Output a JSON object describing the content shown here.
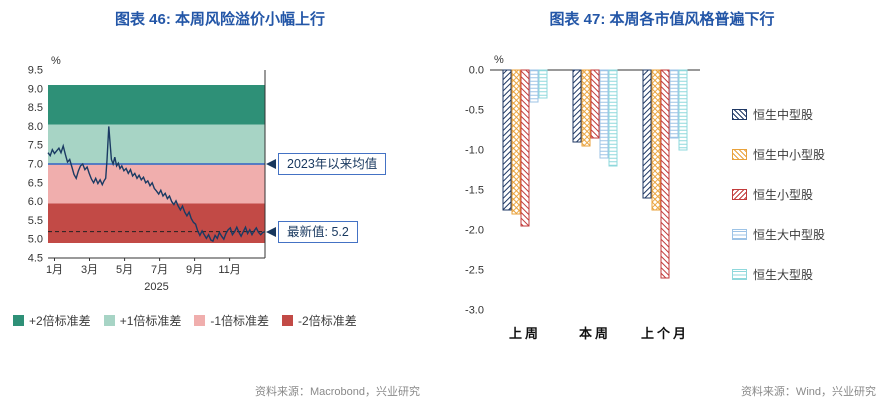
{
  "colors": {
    "title_blue": "#2356A7",
    "source_gray": "#8A8A8A",
    "axis_text": "#333333"
  },
  "chart_data": [
    {
      "type": "line",
      "title": "图表 46: 本周风险溢价小幅上行",
      "source": "资料来源：Macrobond，兴业研究",
      "ylabel": "%",
      "ylim": [
        4.5,
        9.5
      ],
      "ytick_step": 0.5,
      "x_ticks": [
        {
          "label": "1月",
          "m": 1
        },
        {
          "label": "3月",
          "m": 3
        },
        {
          "label": "5月",
          "m": 5
        },
        {
          "label": "7月",
          "m": 7
        },
        {
          "label": "9月",
          "m": 9
        },
        {
          "label": "11月",
          "m": 11
        }
      ],
      "year_label": "2025",
      "bands": [
        {
          "label": "+2倍标准差",
          "from": 8.05,
          "to": 9.1,
          "color": "#2E9077"
        },
        {
          "label": "+1倍标准差",
          "from": 7.0,
          "to": 8.05,
          "color": "#A7D4C5"
        },
        {
          "label": "-1倍标准差",
          "from": 5.95,
          "to": 7.0,
          "color": "#F0AEAD"
        },
        {
          "label": "-2倍标准差",
          "from": 4.9,
          "to": 5.95,
          "color": "#C24A46"
        }
      ],
      "mean_line": {
        "value": 7.0,
        "label": "2023年以来均值",
        "color": "#4472C4"
      },
      "latest": {
        "value": 5.2,
        "label": "最新值: 5.2"
      },
      "line_color": "#1A3A63",
      "series": [
        [
          0,
          7.3
        ],
        [
          0.01,
          7.22
        ],
        [
          0.02,
          7.38
        ],
        [
          0.03,
          7.28
        ],
        [
          0.04,
          7.35
        ],
        [
          0.05,
          7.42
        ],
        [
          0.06,
          7.3
        ],
        [
          0.07,
          7.48
        ],
        [
          0.08,
          7.25
        ],
        [
          0.09,
          7.05
        ],
        [
          0.1,
          7.12
        ],
        [
          0.11,
          6.92
        ],
        [
          0.12,
          6.72
        ],
        [
          0.13,
          6.62
        ],
        [
          0.14,
          6.82
        ],
        [
          0.15,
          6.95
        ],
        [
          0.16,
          7.0
        ],
        [
          0.17,
          6.85
        ],
        [
          0.18,
          6.92
        ],
        [
          0.19,
          6.75
        ],
        [
          0.2,
          6.6
        ],
        [
          0.21,
          6.5
        ],
        [
          0.22,
          6.62
        ],
        [
          0.23,
          6.48
        ],
        [
          0.24,
          6.58
        ],
        [
          0.25,
          6.45
        ],
        [
          0.258,
          6.55
        ],
        [
          0.266,
          6.62
        ],
        [
          0.272,
          7.1
        ],
        [
          0.28,
          8.0
        ],
        [
          0.286,
          7.55
        ],
        [
          0.292,
          7.12
        ],
        [
          0.3,
          7.0
        ],
        [
          0.308,
          7.18
        ],
        [
          0.316,
          6.95
        ],
        [
          0.324,
          7.02
        ],
        [
          0.332,
          6.88
        ],
        [
          0.34,
          6.95
        ],
        [
          0.35,
          6.82
        ],
        [
          0.36,
          6.88
        ],
        [
          0.37,
          6.75
        ],
        [
          0.38,
          6.85
        ],
        [
          0.39,
          6.68
        ],
        [
          0.4,
          6.75
        ],
        [
          0.41,
          6.62
        ],
        [
          0.42,
          6.7
        ],
        [
          0.43,
          6.58
        ],
        [
          0.44,
          6.65
        ],
        [
          0.45,
          6.5
        ],
        [
          0.46,
          6.55
        ],
        [
          0.47,
          6.42
        ],
        [
          0.48,
          6.5
        ],
        [
          0.49,
          6.35
        ],
        [
          0.5,
          6.28
        ],
        [
          0.51,
          6.2
        ],
        [
          0.52,
          6.3
        ],
        [
          0.53,
          6.15
        ],
        [
          0.54,
          6.22
        ],
        [
          0.55,
          6.08
        ],
        [
          0.56,
          6.15
        ],
        [
          0.57,
          6.0
        ],
        [
          0.58,
          5.92
        ],
        [
          0.59,
          6.02
        ],
        [
          0.6,
          5.88
        ],
        [
          0.61,
          5.78
        ],
        [
          0.62,
          5.88
        ],
        [
          0.63,
          5.72
        ],
        [
          0.64,
          5.62
        ],
        [
          0.65,
          5.72
        ],
        [
          0.66,
          5.55
        ],
        [
          0.67,
          5.45
        ],
        [
          0.68,
          5.4
        ],
        [
          0.69,
          5.22
        ],
        [
          0.7,
          5.1
        ],
        [
          0.71,
          5.22
        ],
        [
          0.72,
          5.12
        ],
        [
          0.73,
          5.02
        ],
        [
          0.74,
          5.12
        ],
        [
          0.75,
          4.98
        ],
        [
          0.76,
          4.95
        ],
        [
          0.77,
          5.1
        ],
        [
          0.78,
          5.02
        ],
        [
          0.79,
          5.18
        ],
        [
          0.8,
          5.08
        ],
        [
          0.81,
          5.0
        ],
        [
          0.82,
          5.15
        ],
        [
          0.83,
          5.25
        ],
        [
          0.84,
          5.3
        ],
        [
          0.85,
          5.12
        ],
        [
          0.86,
          5.2
        ],
        [
          0.87,
          5.32
        ],
        [
          0.88,
          5.18
        ],
        [
          0.89,
          5.08
        ],
        [
          0.9,
          5.2
        ],
        [
          0.91,
          5.32
        ],
        [
          0.92,
          5.15
        ],
        [
          0.93,
          5.25
        ],
        [
          0.94,
          5.12
        ],
        [
          0.95,
          5.22
        ],
        [
          0.96,
          5.3
        ],
        [
          0.97,
          5.18
        ],
        [
          0.98,
          5.12
        ],
        [
          0.99,
          5.18
        ],
        [
          1,
          5.2
        ]
      ]
    },
    {
      "type": "bar",
      "title": "图表 47: 本周各市值风格普遍下行",
      "source": "资料来源：Wind，兴业研究",
      "ylabel": "%",
      "ylim": [
        -3.0,
        0.0
      ],
      "ytick_labels": [
        "0.0",
        "-0.5",
        "-1.0",
        "-1.5",
        "-2.0",
        "-2.5",
        "-3.0"
      ],
      "categories": [
        "上周",
        "本周",
        "上个月"
      ],
      "series": [
        {
          "name": "恒生中型股",
          "color": "#1F3864",
          "hatch": "diag-down",
          "values": [
            -1.75,
            -0.9,
            -1.6
          ]
        },
        {
          "name": "恒生中小型股",
          "color": "#E9A23B",
          "hatch": "cross",
          "values": [
            -1.8,
            -0.95,
            -1.75
          ]
        },
        {
          "name": "恒生小型股",
          "color": "#C23B3B",
          "hatch": "diag-up",
          "values": [
            -1.95,
            -0.85,
            -2.6
          ]
        },
        {
          "name": "恒生大中型股",
          "color": "#9DC3E6",
          "hatch": "horiz",
          "values": [
            -0.4,
            -1.1,
            -0.85
          ]
        },
        {
          "name": "恒生大型股",
          "color": "#8FD8DC",
          "hatch": "horiz",
          "values": [
            -0.35,
            -1.2,
            -1.0
          ]
        }
      ]
    }
  ]
}
